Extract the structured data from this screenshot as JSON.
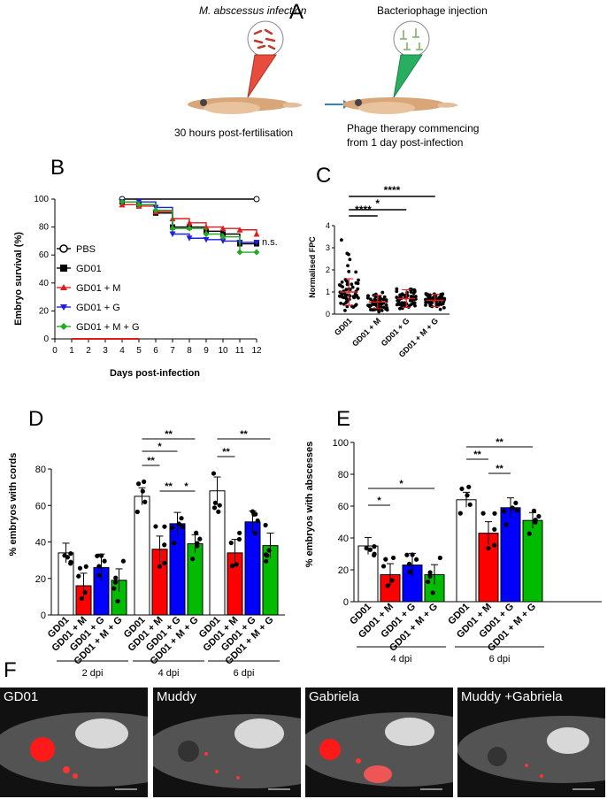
{
  "panelA": {
    "letter": "A",
    "infection_title": "M. abscessus infection",
    "phage_title": "Bacteriophage injection",
    "left_caption": "30 hours post-fertilisation",
    "right_caption_line1": "Phage therapy commencing",
    "right_caption_line2": "from 1 day post-infection"
  },
  "panelB": {
    "letter": "B",
    "ylabel": "Embryo survival (%)",
    "xlabel": "Days post-infection",
    "ns": "n.s.",
    "legend": [
      "PBS",
      "GD01",
      "GD01 + M",
      "GD01 + G",
      "GD01 + M + G"
    ]
  },
  "panelC": {
    "letter": "C",
    "ylabel": "Normalised FPC",
    "sig": [
      "****",
      "*",
      "****"
    ],
    "categories": [
      "GD01",
      "GD01 + M",
      "GD01 + G",
      "GD01 + M + G"
    ]
  },
  "panelD": {
    "letter": "D",
    "ylabel": "% embryos with cords",
    "groups": [
      "2 dpi",
      "4 dpi",
      "6 dpi"
    ],
    "categories": [
      "GD01",
      "GD01 + M",
      "GD01 + G",
      "GD01 + M + G"
    ],
    "sig": [
      "**",
      "*",
      "**",
      "**",
      "*",
      "**",
      "**"
    ]
  },
  "panelE": {
    "letter": "E",
    "ylabel": "% embryos with abscesses",
    "groups": [
      "4 dpi",
      "6 dpi"
    ],
    "categories": [
      "GD01",
      "GD01 + M",
      "GD01 + G",
      "GD01 + M + G"
    ],
    "sig": [
      "*",
      "*",
      "**",
      "**",
      "**"
    ]
  },
  "panelF": {
    "letter": "F",
    "images": [
      "GD01",
      "Muddy",
      "Gabriela",
      "Muddy +Gabriela"
    ]
  },
  "chart_data": [
    {
      "type": "line",
      "id": "B",
      "x": [
        0,
        1,
        2,
        3,
        4,
        5,
        6,
        7,
        8,
        9,
        10,
        11,
        12
      ],
      "ylim": [
        0,
        100
      ],
      "xlim": [
        0,
        12
      ],
      "series": [
        {
          "name": "PBS",
          "color": "#000000",
          "x": [
            4,
            12
          ],
          "y": [
            100,
            100
          ]
        },
        {
          "name": "GD01",
          "color": "#000000",
          "x": [
            4,
            5,
            6,
            7,
            8,
            9,
            10,
            11,
            12
          ],
          "y": [
            98,
            96,
            90,
            80,
            80,
            77,
            75,
            68,
            68
          ]
        },
        {
          "name": "GD01 + M",
          "color": "#e31a1c",
          "x": [
            4,
            5,
            6,
            7,
            8,
            9,
            10,
            11,
            12
          ],
          "y": [
            96,
            95,
            91,
            86,
            83,
            80,
            79,
            78,
            75
          ]
        },
        {
          "name": "GD01 + G",
          "color": "#1f1fe0",
          "x": [
            4,
            5,
            6,
            7,
            8,
            9,
            10,
            11,
            12
          ],
          "y": [
            98,
            98,
            94,
            75,
            72,
            71,
            70,
            69,
            69
          ]
        },
        {
          "name": "GD01 + M + G",
          "color": "#22aa22",
          "x": [
            4,
            5,
            6,
            7,
            8,
            9,
            10,
            11,
            12
          ],
          "y": [
            98,
            96,
            92,
            79,
            79,
            75,
            73,
            62,
            62
          ]
        }
      ]
    },
    {
      "type": "scatter",
      "id": "C",
      "ylim": [
        0,
        4
      ],
      "yticks": [
        0,
        1,
        2,
        3,
        4
      ],
      "categories": [
        "GD01",
        "GD01 + M",
        "GD01 + G",
        "GD01 + M + G"
      ],
      "means": [
        1.0,
        0.55,
        0.7,
        0.62
      ],
      "sds": [
        0.6,
        0.3,
        0.4,
        0.28
      ]
    },
    {
      "type": "bar",
      "id": "D",
      "ylim": [
        0,
        80
      ],
      "yticks": [
        0,
        20,
        40,
        60,
        80
      ],
      "groups": [
        "2 dpi",
        "4 dpi",
        "6 dpi"
      ],
      "series": [
        {
          "name": "GD01",
          "color": "#ffffff",
          "values": [
            34,
            65,
            68
          ]
        },
        {
          "name": "GD01 + M",
          "color": "#ff0000",
          "values": [
            16,
            36,
            34
          ]
        },
        {
          "name": "GD01 + G",
          "color": "#0000ff",
          "values": [
            26,
            50,
            51
          ]
        },
        {
          "name": "GD01 + M + G",
          "color": "#00bb00",
          "values": [
            19,
            39,
            38
          ]
        }
      ]
    },
    {
      "type": "bar",
      "id": "E",
      "ylim": [
        0,
        100
      ],
      "yticks": [
        0,
        20,
        40,
        60,
        80,
        100
      ],
      "groups": [
        "4 dpi",
        "6 dpi"
      ],
      "series": [
        {
          "name": "GD01",
          "color": "#ffffff",
          "values": [
            35,
            64
          ]
        },
        {
          "name": "GD01 + M",
          "color": "#ff0000",
          "values": [
            17,
            43
          ]
        },
        {
          "name": "GD01 + G",
          "color": "#0000ff",
          "values": [
            23,
            59
          ]
        },
        {
          "name": "GD01 + M + G",
          "color": "#00bb00",
          "values": [
            17,
            51
          ]
        }
      ]
    }
  ]
}
